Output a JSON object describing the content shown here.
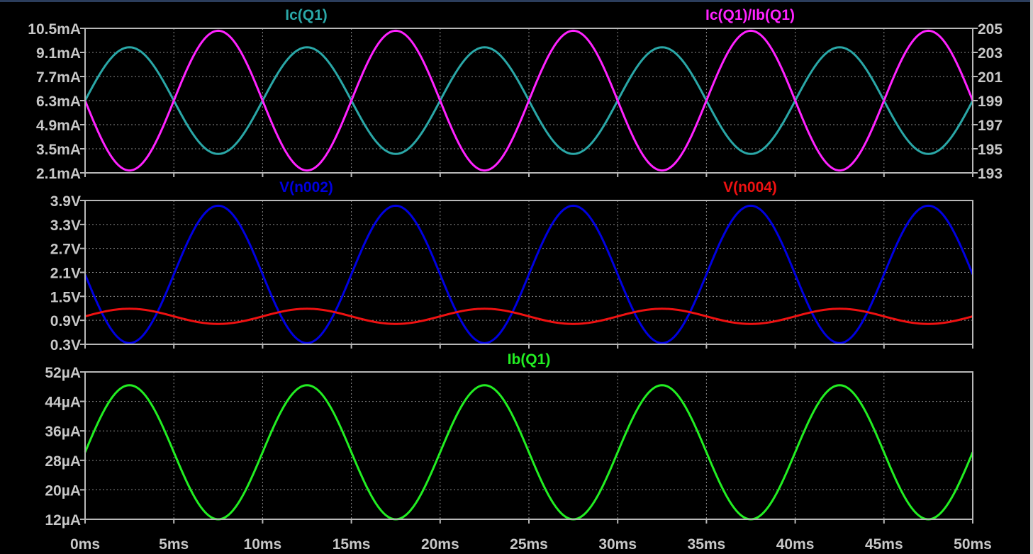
{
  "chart_data": [
    {
      "type": "line",
      "x_axis": {
        "range": [
          0,
          50
        ],
        "unit": "ms",
        "ticks": [
          "0ms",
          "5ms",
          "10ms",
          "15ms",
          "20ms",
          "25ms",
          "30ms",
          "35ms",
          "40ms",
          "45ms",
          "50ms"
        ]
      },
      "y_left": {
        "range": [
          2.1,
          10.5
        ],
        "ticks": [
          "2.1mA",
          "3.5mA",
          "4.9mA",
          "6.3mA",
          "7.7mA",
          "9.1mA",
          "10.5mA"
        ]
      },
      "y_right": {
        "range": [
          193,
          205
        ],
        "ticks": [
          "193",
          "195",
          "197",
          "199",
          "201",
          "203",
          "205"
        ]
      },
      "grid": true,
      "series": [
        {
          "name": "Ic(Q1)",
          "color": "#2aa7a7",
          "axis": "left",
          "offset": 6.3,
          "amplitude": 3.1,
          "period_ms": 10,
          "phase_deg": 0
        },
        {
          "name": "Ic(Q1)/Ib(Q1)",
          "color": "#ff22ff",
          "axis": "right",
          "offset": 199.0,
          "amplitude": 5.8,
          "period_ms": 10,
          "phase_deg": 180
        }
      ]
    },
    {
      "type": "line",
      "x_axis": {
        "range": [
          0,
          50
        ],
        "unit": "ms"
      },
      "y_left": {
        "range": [
          0.3,
          3.9
        ],
        "ticks": [
          "0.3V",
          "0.9V",
          "1.5V",
          "2.1V",
          "2.7V",
          "3.3V",
          "3.9V"
        ]
      },
      "grid": true,
      "series": [
        {
          "name": "V(n002)",
          "color": "#0000e0",
          "axis": "left",
          "offset": 2.05,
          "amplitude": 1.72,
          "period_ms": 10,
          "phase_deg": 180
        },
        {
          "name": "V(n004)",
          "color": "#ee1111",
          "axis": "left",
          "offset": 1.0,
          "amplitude": 0.19,
          "period_ms": 10,
          "phase_deg": 0
        }
      ]
    },
    {
      "type": "line",
      "x_axis": {
        "range": [
          0,
          50
        ],
        "unit": "ms"
      },
      "y_left": {
        "range": [
          12,
          52
        ],
        "ticks": [
          "12µA",
          "20µA",
          "28µA",
          "36µA",
          "44µA",
          "52µA"
        ]
      },
      "grid": true,
      "series": [
        {
          "name": "Ib(Q1)",
          "color": "#22ee22",
          "axis": "left",
          "offset": 30.2,
          "amplitude": 18.2,
          "period_ms": 10,
          "phase_deg": 0
        }
      ]
    }
  ]
}
